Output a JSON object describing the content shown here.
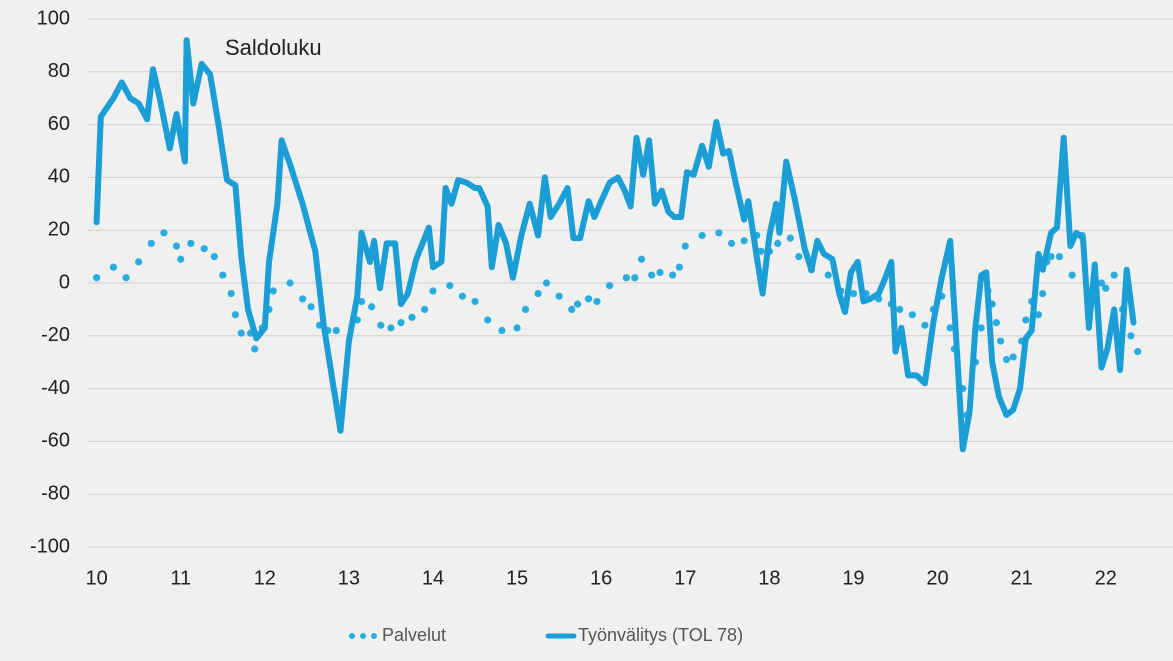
{
  "chart_data": {
    "type": "line",
    "annotation": "Saldoluku",
    "xlim": [
      9.85,
      22.8
    ],
    "xticks": [
      10,
      11,
      12,
      13,
      14,
      15,
      16,
      17,
      18,
      19,
      20,
      21,
      22
    ],
    "ylim": [
      -100,
      100
    ],
    "yticks": [
      -100,
      -80,
      -60,
      -40,
      -20,
      0,
      20,
      40,
      60,
      80,
      100
    ],
    "grid": true,
    "legend": "bottom",
    "series": [
      {
        "name": "Palvelut",
        "color": "#29ade0",
        "style": "dotted",
        "x": [
          10.0,
          10.2,
          10.35,
          10.5,
          10.65,
          10.8,
          10.95,
          11.0,
          11.12,
          11.28,
          11.4,
          11.5,
          11.6,
          11.65,
          11.72,
          11.83,
          11.88,
          11.97,
          12.05,
          12.1,
          12.3,
          12.45,
          12.55,
          12.65,
          12.75,
          12.85,
          13.1,
          13.15,
          13.27,
          13.38,
          13.5,
          13.62,
          13.75,
          13.9,
          14.0,
          14.2,
          14.35,
          14.5,
          14.65,
          14.82,
          15.0,
          15.1,
          15.25,
          15.35,
          15.5,
          15.65,
          15.72,
          15.85,
          15.95,
          16.1,
          16.3,
          16.4,
          16.48,
          16.6,
          16.7,
          16.85,
          16.93,
          17.0,
          17.2,
          17.4,
          17.55,
          17.7,
          17.85,
          17.9,
          18.0,
          18.1,
          18.25,
          18.35,
          18.5,
          18.7,
          18.85,
          19.0,
          19.15,
          19.3,
          19.45,
          19.55,
          19.7,
          19.85,
          19.95,
          20.05,
          20.15,
          20.2,
          20.3,
          20.35,
          20.45,
          20.52,
          20.6,
          20.65,
          20.7,
          20.75,
          20.82,
          20.9,
          21.0,
          21.05,
          21.12,
          21.2,
          21.25,
          21.3,
          21.35,
          21.45,
          21.6,
          21.72,
          21.85,
          21.95,
          22.0,
          22.1,
          22.2,
          22.3,
          22.38
        ],
        "values": [
          2,
          6,
          2,
          8,
          15,
          19,
          14,
          9,
          15,
          13,
          10,
          3,
          -4,
          -12,
          -19,
          -19,
          -25,
          -17,
          -10,
          -3,
          0,
          -6,
          -9,
          -16,
          -18,
          -18,
          -14,
          -7,
          -9,
          -16,
          -17,
          -15,
          -13,
          -10,
          -3,
          -1,
          -5,
          -7,
          -14,
          -18,
          -17,
          -10,
          -4,
          0,
          -5,
          -10,
          -8,
          -6,
          -7,
          -1,
          2,
          2,
          9,
          3,
          4,
          3,
          6,
          14,
          18,
          19,
          15,
          16,
          18,
          12,
          12,
          15,
          17,
          10,
          5,
          3,
          -3,
          -4,
          -4,
          -6,
          -8,
          -10,
          -12,
          -16,
          -10,
          -5,
          -17,
          -25,
          -40,
          -50,
          -30,
          -17,
          -3,
          -8,
          -15,
          -22,
          -29,
          -28,
          -22,
          -14,
          -7,
          -12,
          -4,
          8,
          10,
          10,
          3,
          18,
          -3,
          0,
          -2,
          3,
          -10,
          -20,
          -26
        ]
      },
      {
        "name": "Työnvälitys (TOL 78)",
        "color": "#1b9ed6",
        "style": "solid",
        "x": [
          10.0,
          10.05,
          10.2,
          10.3,
          10.4,
          10.5,
          10.6,
          10.67,
          10.75,
          10.87,
          10.95,
          11.05,
          11.07,
          11.15,
          11.25,
          11.35,
          11.45,
          11.55,
          11.65,
          11.72,
          11.8,
          11.9,
          12.0,
          12.05,
          12.15,
          12.2,
          12.3,
          12.45,
          12.6,
          12.7,
          12.8,
          12.9,
          13.0,
          13.1,
          13.15,
          13.25,
          13.3,
          13.37,
          13.45,
          13.55,
          13.62,
          13.7,
          13.8,
          13.95,
          14.0,
          14.1,
          14.15,
          14.22,
          14.3,
          14.4,
          14.5,
          14.55,
          14.65,
          14.7,
          14.78,
          14.87,
          14.95,
          15.05,
          15.15,
          15.25,
          15.33,
          15.4,
          15.5,
          15.6,
          15.67,
          15.75,
          15.85,
          15.92,
          16.0,
          16.1,
          16.2,
          16.28,
          16.35,
          16.42,
          16.5,
          16.57,
          16.64,
          16.72,
          16.8,
          16.87,
          16.95,
          17.02,
          17.1,
          17.2,
          17.28,
          17.37,
          17.45,
          17.52,
          17.6,
          17.7,
          17.75,
          17.85,
          17.92,
          18.0,
          18.08,
          18.12,
          18.2,
          18.3,
          18.42,
          18.5,
          18.57,
          18.65,
          18.75,
          18.83,
          18.9,
          18.97,
          19.05,
          19.12,
          19.2,
          19.3,
          19.38,
          19.45,
          19.5,
          19.57,
          19.65,
          19.75,
          19.85,
          19.95,
          20.05,
          20.15,
          20.22,
          20.3,
          20.38,
          20.45,
          20.52,
          20.58,
          20.65,
          20.73,
          20.82,
          20.9,
          20.98,
          21.05,
          21.12,
          21.2,
          21.25,
          21.35,
          21.42,
          21.5,
          21.58,
          21.65,
          21.73,
          21.8,
          21.87,
          21.95,
          22.02,
          22.1,
          22.17,
          22.25,
          22.33
        ],
        "values": [
          23,
          63,
          70,
          76,
          70,
          68,
          62,
          81,
          70,
          51,
          64,
          46,
          92,
          68,
          83,
          79,
          60,
          39,
          37,
          10,
          -10,
          -21,
          -17,
          8,
          30,
          54,
          45,
          30,
          12,
          -16,
          -36,
          -56,
          -22,
          -5,
          19,
          8,
          16,
          -2,
          15,
          15,
          -8,
          -4,
          9,
          21,
          6,
          8,
          36,
          30,
          39,
          38,
          36,
          36,
          29,
          6,
          22,
          15,
          2,
          18,
          30,
          18,
          40,
          25,
          30,
          36,
          17,
          17,
          31,
          25,
          31,
          38,
          40,
          35,
          29,
          55,
          41,
          54,
          30,
          35,
          27,
          25,
          25,
          42,
          41,
          52,
          44,
          61,
          49,
          50,
          38,
          24,
          31,
          10,
          -4,
          18,
          30,
          19,
          46,
          32,
          13,
          5,
          16,
          11,
          9,
          -4,
          -11,
          4,
          8,
          -7,
          -6,
          -4,
          2,
          8,
          -26,
          -17,
          -35,
          -35,
          -38,
          -15,
          2,
          16,
          -20,
          -63,
          -49,
          -17,
          3,
          4,
          -30,
          -43,
          -50,
          -48,
          -40,
          -21,
          -18,
          11,
          5,
          19,
          21,
          55,
          14,
          19,
          17,
          -17,
          7,
          -32,
          -25,
          -10,
          -33,
          5,
          -15
        ]
      }
    ]
  }
}
